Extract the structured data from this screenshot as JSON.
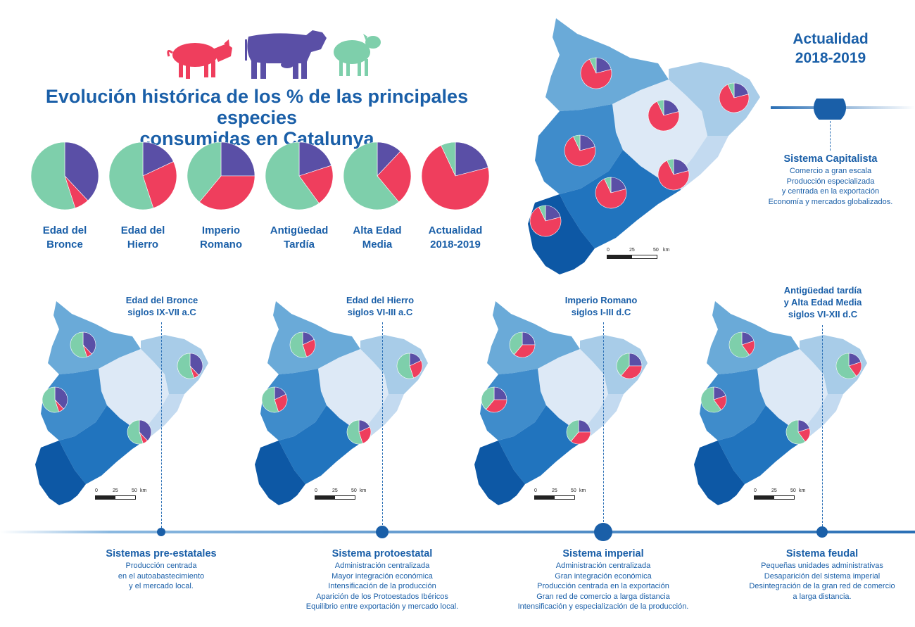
{
  "title": {
    "line1": "Evolución histórica de los % de las principales especies",
    "line2": "consumidas en Catalunya"
  },
  "animals": [
    {
      "name": "pig-icon",
      "color": "#ef3e5d"
    },
    {
      "name": "cow-icon",
      "color": "#5a4fa6"
    },
    {
      "name": "sheep-icon",
      "color": "#7ecfab"
    }
  ],
  "colors": {
    "pig": "#ef3e5d",
    "cattle": "#5a4fa6",
    "sheep_goat": "#7ecfab",
    "title": "#1a5fa8"
  },
  "chart_data": {
    "type": "pie",
    "series_order": [
      "Bovino",
      "Porcino",
      "Ovicaprino"
    ],
    "periods": [
      {
        "label_1": "Edad del",
        "label_2": "Bronce",
        "values": [
          38,
          7,
          55
        ]
      },
      {
        "label_1": "Edad del",
        "label_2": "Hierro",
        "values": [
          18,
          27,
          55
        ]
      },
      {
        "label_1": "Imperio",
        "label_2": "Romano",
        "values": [
          25,
          36,
          39
        ]
      },
      {
        "label_1": "Antigüedad",
        "label_2": "Tardía",
        "values": [
          20,
          20,
          60
        ]
      },
      {
        "label_1": "Alta Edad",
        "label_2": "Media",
        "values": [
          12,
          27,
          61
        ]
      },
      {
        "label_1": "Actualidad",
        "label_2": "2018-2019",
        "values": [
          21,
          72,
          7
        ]
      }
    ]
  },
  "current": {
    "heading_1": "Actualidad",
    "heading_2": "2018-2019",
    "system_title": "Sistema Capitalista",
    "lines": [
      "Comercio a gran escala",
      "Producción especializada",
      "y centrada en la exportación",
      "Economía y mercados globalizados."
    ]
  },
  "scale": {
    "t0": "0",
    "t1": "25",
    "t2": "50",
    "unit": "km"
  },
  "maps": [
    {
      "era_1": "Edad del Bronce",
      "era_2": "siglos IX-VII a.C",
      "era_3": ""
    },
    {
      "era_1": "Edad del Hierro",
      "era_2": "siglos VI-III a.C",
      "era_3": ""
    },
    {
      "era_1": "Imperio Romano",
      "era_2": "siglos I-III d.C",
      "era_3": ""
    },
    {
      "era_1": "Antigüedad tardía",
      "era_2": "y Alta Edad Media",
      "era_3": "siglos VI-XII d.C"
    }
  ],
  "systems": [
    {
      "title": "Sistemas pre-estatales",
      "lines": [
        "Producción centrada",
        "en el autoabastecimiento",
        "y el mercado local."
      ]
    },
    {
      "title": "Sistema protoestatal",
      "lines": [
        "Administración centralizada",
        "Mayor integración económica",
        "Intensificación de la producción",
        "Aparición de los Protoestados Ibéricos",
        "Equilibrio entre exportación y mercado local."
      ]
    },
    {
      "title": "Sistema imperial",
      "lines": [
        "Administración centralizada",
        "Gran integración económica",
        "Producción centrada en la exportación",
        "Gran red de comercio a larga distancia",
        "Intensificación y especialización de la producción."
      ]
    },
    {
      "title": "Sistema feudal",
      "lines": [
        "Pequeñas unidades administrativas",
        "Desaparición del sistema imperial",
        "Desintegración de la gran red de comercio",
        "a larga distancia."
      ]
    }
  ]
}
